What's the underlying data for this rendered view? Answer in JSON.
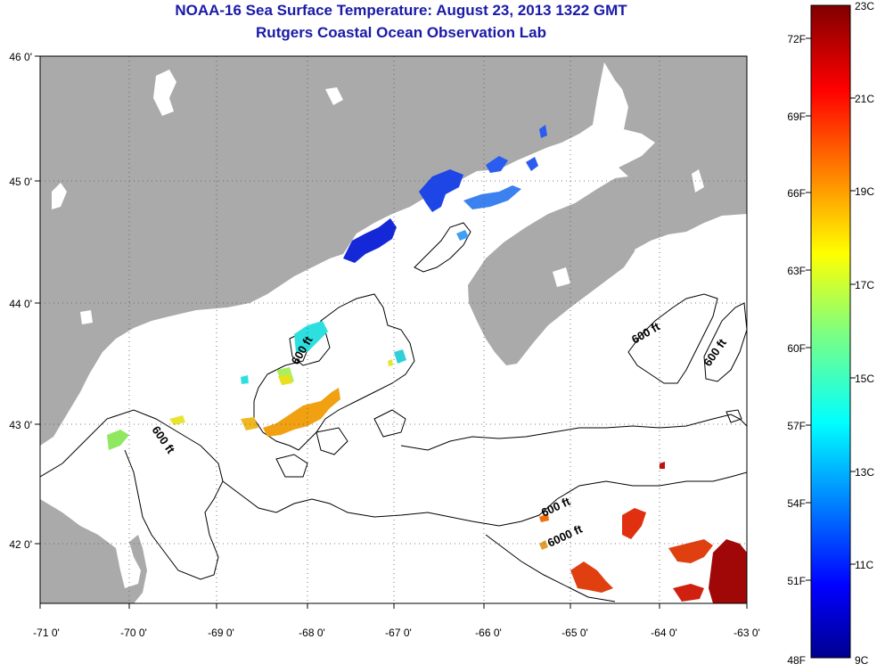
{
  "title": {
    "line1": "NOAA-16 Sea Surface Temperature:  August 23, 2013 1322 GMT",
    "line2": "Rutgers Coastal Ocean Observation Lab"
  },
  "map": {
    "lon_labels": [
      "-71 0'",
      "-70 0'",
      "-69 0'",
      "-68 0'",
      "-67 0'",
      "-66 0'",
      "-65 0'",
      "-64 0'",
      "-63 0'"
    ],
    "lat_labels": [
      "46 0'",
      "45 0'",
      "44 0'",
      "43 0'",
      "42 0'"
    ],
    "contour_labels": [
      "600 ft",
      "600 ft",
      "600 ft",
      "600 ft",
      "600 ft",
      "6000 ft"
    ],
    "colors": {
      "land": "#aaaaaa",
      "water": "#ffffff",
      "title": "#1a1aa8"
    }
  },
  "colorbar": {
    "fahrenheit_labels": [
      "72F",
      "69F",
      "66F",
      "63F",
      "60F",
      "57F",
      "54F",
      "51F",
      "48F"
    ],
    "celsius_labels": [
      "23C",
      "21C",
      "19C",
      "17C",
      "15C",
      "13C",
      "11C",
      "9C"
    ],
    "range_c": [
      9,
      23
    ],
    "range_f": [
      48,
      73
    ]
  }
}
